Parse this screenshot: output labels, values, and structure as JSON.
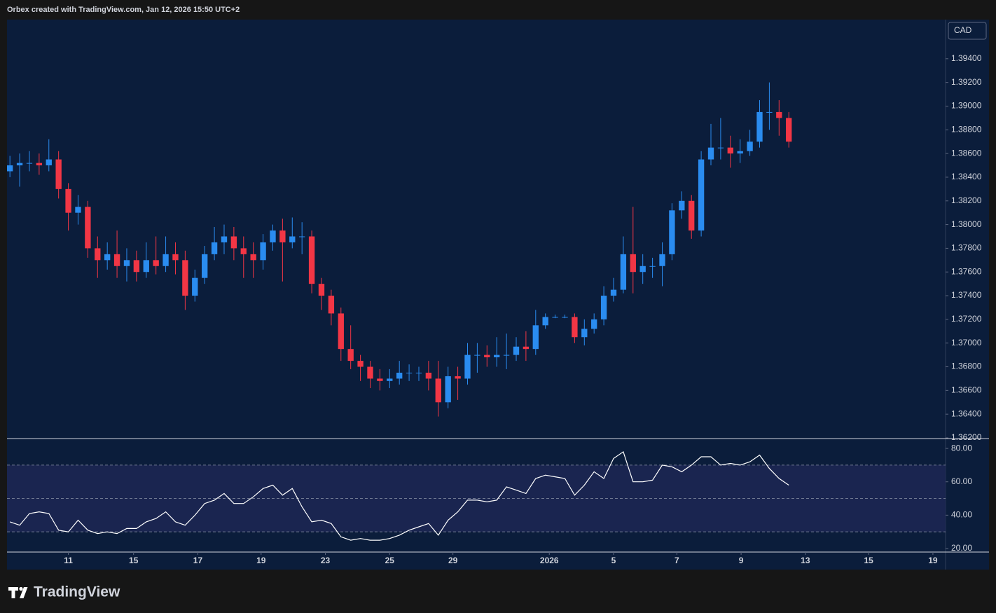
{
  "header": {
    "attribution": "Orbex created with TradingView.com, Jan 12, 2026 15:50 UTC+2"
  },
  "footer": {
    "brand": "TradingView"
  },
  "chart_data": [
    {
      "type": "candlestick",
      "scale_label": "CAD",
      "up_color": "#2a8cf0",
      "down_color": "#f23645",
      "open": [
        1.3845,
        1.385,
        1.3852,
        1.3852,
        1.385,
        1.3855,
        1.383,
        1.381,
        1.3815,
        1.378,
        1.377,
        1.3775,
        1.3765,
        1.377,
        1.376,
        1.377,
        1.3765,
        1.3775,
        1.377,
        1.374,
        1.3755,
        1.3775,
        1.3785,
        1.379,
        1.378,
        1.3775,
        1.377,
        1.3785,
        1.3795,
        1.3785,
        1.379,
        1.379,
        1.375,
        1.374,
        1.3725,
        1.3695,
        1.3685,
        1.368,
        1.367,
        1.3668,
        1.367,
        1.3675,
        1.3675,
        1.3675,
        1.367,
        1.365,
        1.3672,
        1.367,
        1.369,
        1.369,
        1.3688,
        1.369,
        1.369,
        1.3697,
        1.3695,
        1.3715,
        1.3722,
        1.3722,
        1.3722,
        1.3705,
        1.3712,
        1.372,
        1.374,
        1.3745,
        1.3775,
        1.376,
        1.3765,
        1.3765,
        1.3775,
        1.3812,
        1.382,
        1.3795,
        1.3855,
        1.3865,
        1.3865,
        1.386,
        1.3862,
        1.387,
        1.3895,
        1.3895,
        1.389
      ],
      "high": [
        1.3858,
        1.386,
        1.3862,
        1.386,
        1.3872,
        1.3862,
        1.3835,
        1.3825,
        1.382,
        1.379,
        1.3785,
        1.3795,
        1.378,
        1.3778,
        1.3785,
        1.379,
        1.379,
        1.3785,
        1.3778,
        1.3762,
        1.3782,
        1.3798,
        1.38,
        1.3798,
        1.379,
        1.3785,
        1.3792,
        1.38,
        1.3805,
        1.3806,
        1.3802,
        1.3795,
        1.3755,
        1.3745,
        1.373,
        1.3715,
        1.369,
        1.3685,
        1.3678,
        1.3678,
        1.3685,
        1.3682,
        1.368,
        1.3685,
        1.3685,
        1.368,
        1.368,
        1.37,
        1.37,
        1.3698,
        1.3705,
        1.3708,
        1.3705,
        1.371,
        1.3728,
        1.3725,
        1.3724,
        1.3724,
        1.3725,
        1.372,
        1.3725,
        1.3748,
        1.3755,
        1.379,
        1.3815,
        1.3775,
        1.3772,
        1.3785,
        1.3818,
        1.3828,
        1.3825,
        1.3862,
        1.3885,
        1.389,
        1.3875,
        1.3872,
        1.388,
        1.3905,
        1.392,
        1.3905,
        1.3895
      ],
      "low": [
        1.384,
        1.3832,
        1.3845,
        1.3842,
        1.3845,
        1.3822,
        1.3795,
        1.38,
        1.3772,
        1.3755,
        1.3762,
        1.3755,
        1.3752,
        1.3752,
        1.3755,
        1.3758,
        1.376,
        1.3758,
        1.3728,
        1.3735,
        1.375,
        1.377,
        1.3775,
        1.377,
        1.3755,
        1.3755,
        1.3762,
        1.3778,
        1.3752,
        1.378,
        1.3775,
        1.3742,
        1.3728,
        1.3715,
        1.3685,
        1.3678,
        1.3668,
        1.3662,
        1.366,
        1.3662,
        1.3665,
        1.3668,
        1.3668,
        1.366,
        1.3638,
        1.3645,
        1.3652,
        1.3665,
        1.3675,
        1.368,
        1.368,
        1.3678,
        1.3685,
        1.3685,
        1.369,
        1.3712,
        1.3721,
        1.3721,
        1.37,
        1.3698,
        1.3708,
        1.3715,
        1.3735,
        1.3742,
        1.3742,
        1.375,
        1.3755,
        1.3748,
        1.377,
        1.3805,
        1.3788,
        1.379,
        1.385,
        1.3855,
        1.3848,
        1.3852,
        1.3858,
        1.3865,
        1.388,
        1.3875,
        1.3865
      ],
      "close": [
        1.385,
        1.3852,
        1.3852,
        1.385,
        1.3855,
        1.383,
        1.381,
        1.3815,
        1.378,
        1.377,
        1.3775,
        1.3765,
        1.377,
        1.376,
        1.377,
        1.3765,
        1.3775,
        1.377,
        1.374,
        1.3755,
        1.3775,
        1.3785,
        1.379,
        1.378,
        1.3775,
        1.377,
        1.3785,
        1.3795,
        1.3785,
        1.379,
        1.379,
        1.375,
        1.374,
        1.3725,
        1.3695,
        1.3685,
        1.368,
        1.367,
        1.3668,
        1.367,
        1.3675,
        1.3675,
        1.3675,
        1.367,
        1.365,
        1.3672,
        1.367,
        1.369,
        1.369,
        1.3688,
        1.369,
        1.369,
        1.3697,
        1.3695,
        1.3715,
        1.3722,
        1.3722,
        1.3722,
        1.3705,
        1.3712,
        1.372,
        1.374,
        1.3745,
        1.3775,
        1.376,
        1.3765,
        1.3765,
        1.3775,
        1.3812,
        1.382,
        1.3795,
        1.3855,
        1.3865,
        1.3865,
        1.386,
        1.3862,
        1.387,
        1.3895,
        1.3895,
        1.389,
        1.387
      ],
      "xlim": [
        -0.3,
        96.1
      ],
      "xticks": [
        {
          "value": 6.0,
          "label": "11"
        },
        {
          "value": 12.7,
          "label": "15"
        },
        {
          "value": 19.3,
          "label": "17"
        },
        {
          "value": 25.8,
          "label": "19"
        },
        {
          "value": 32.4,
          "label": "23"
        },
        {
          "value": 39.0,
          "label": "25"
        },
        {
          "value": 45.5,
          "label": "29"
        },
        {
          "value": 55.4,
          "label": "2026"
        },
        {
          "value": 62.0,
          "label": "5"
        },
        {
          "value": 68.5,
          "label": "7"
        },
        {
          "value": 75.1,
          "label": "9"
        },
        {
          "value": 81.7,
          "label": "13"
        },
        {
          "value": 88.2,
          "label": "15"
        },
        {
          "value": 94.8,
          "label": "19"
        }
      ],
      "ylim": [
        1.362,
        1.3973
      ],
      "yticks": [
        {
          "value": 1.362,
          "label": "1.36200"
        },
        {
          "value": 1.364,
          "label": "1.36400"
        },
        {
          "value": 1.366,
          "label": "1.36600"
        },
        {
          "value": 1.368,
          "label": "1.36800"
        },
        {
          "value": 1.37,
          "label": "1.37000"
        },
        {
          "value": 1.372,
          "label": "1.37200"
        },
        {
          "value": 1.374,
          "label": "1.37400"
        },
        {
          "value": 1.376,
          "label": "1.37600"
        },
        {
          "value": 1.378,
          "label": "1.37800"
        },
        {
          "value": 1.38,
          "label": "1.38000"
        },
        {
          "value": 1.382,
          "label": "1.38200"
        },
        {
          "value": 1.384,
          "label": "1.38400"
        },
        {
          "value": 1.386,
          "label": "1.38600"
        },
        {
          "value": 1.388,
          "label": "1.38800"
        },
        {
          "value": 1.39,
          "label": "1.39000"
        },
        {
          "value": 1.392,
          "label": "1.39200"
        },
        {
          "value": 1.394,
          "label": "1.39400"
        }
      ]
    },
    {
      "type": "line",
      "color": "#ffffff",
      "values": [
        36,
        34,
        41,
        42,
        41,
        31,
        30,
        37,
        31,
        29,
        30,
        29,
        32,
        32,
        36,
        38,
        42,
        36,
        34,
        40,
        47,
        49,
        53,
        47,
        47,
        51,
        56,
        58,
        52,
        56,
        45,
        36,
        37,
        35,
        27,
        25,
        26,
        25,
        25,
        26,
        28,
        31,
        33,
        35,
        28,
        37,
        42,
        49,
        49,
        48,
        49,
        57,
        55,
        53,
        62,
        64,
        63,
        62,
        52,
        58,
        66,
        62,
        74,
        78,
        60,
        60,
        61,
        70,
        69,
        66,
        70,
        75,
        75,
        70,
        71,
        70,
        72,
        76,
        68,
        62,
        58
      ],
      "xlim": [
        -0.3,
        96.1
      ],
      "ylim": [
        17.9,
        85.5
      ],
      "yticks": [
        {
          "value": 80,
          "label": "80.00"
        },
        {
          "value": 60,
          "label": "60.00"
        },
        {
          "value": 40,
          "label": "40.00"
        },
        {
          "value": 20,
          "label": "20.00"
        }
      ],
      "levels": [
        70,
        50,
        30
      ]
    }
  ]
}
